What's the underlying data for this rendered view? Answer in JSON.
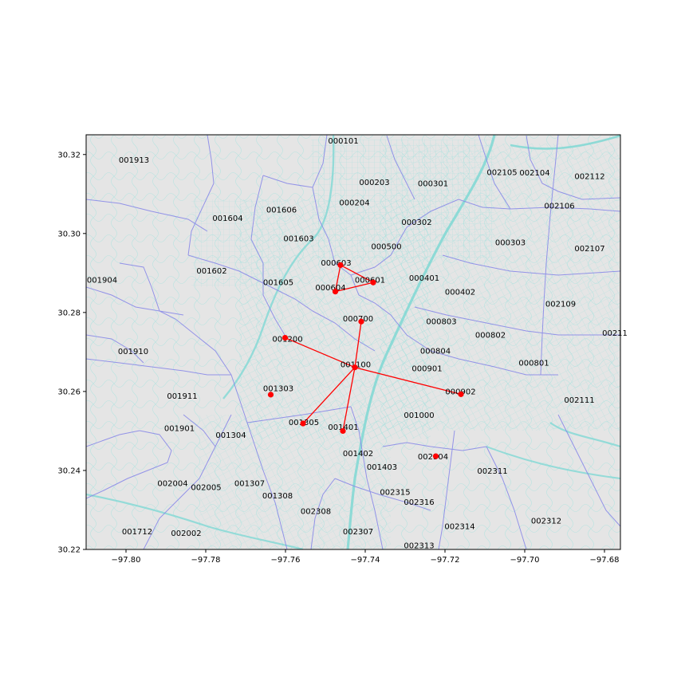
{
  "chart_data": {
    "type": "map",
    "xlim": [
      -97.81,
      -97.676
    ],
    "ylim": [
      30.22,
      30.325
    ],
    "xticks": [
      {
        "value": -97.8,
        "label": "−97.80"
      },
      {
        "value": -97.78,
        "label": "−97.78"
      },
      {
        "value": -97.76,
        "label": "−97.76"
      },
      {
        "value": -97.74,
        "label": "−97.74"
      },
      {
        "value": -97.72,
        "label": "−97.72"
      },
      {
        "value": -97.7,
        "label": "−97.70"
      },
      {
        "value": -97.68,
        "label": "−97.68"
      }
    ],
    "yticks": [
      {
        "value": 30.22,
        "label": "30.22"
      },
      {
        "value": 30.24,
        "label": "30.24"
      },
      {
        "value": 30.26,
        "label": "30.26"
      },
      {
        "value": 30.28,
        "label": "30.28"
      },
      {
        "value": 30.3,
        "label": "30.30"
      },
      {
        "value": 30.32,
        "label": "30.32"
      }
    ],
    "colors": {
      "background": "#e5e5e5",
      "tract_boundary": "#8a8ae8",
      "street": "#8fdcd8",
      "highway": "#6ea8e8",
      "network": "#ff0000"
    },
    "tract_labels": [
      {
        "name": "000101",
        "lon": -97.7455,
        "lat": 30.3235
      },
      {
        "name": "001913",
        "lon": -97.798,
        "lat": 30.3186
      },
      {
        "name": "000203",
        "lon": -97.7377,
        "lat": 30.313
      },
      {
        "name": "000301",
        "lon": -97.723,
        "lat": 30.3127
      },
      {
        "name": "002105",
        "lon": -97.7057,
        "lat": 30.3155
      },
      {
        "name": "002104",
        "lon": -97.6975,
        "lat": 30.3154
      },
      {
        "name": "002112",
        "lon": -97.6837,
        "lat": 30.3145
      },
      {
        "name": "000204",
        "lon": -97.7427,
        "lat": 30.3078
      },
      {
        "name": "001606",
        "lon": -97.761,
        "lat": 30.306
      },
      {
        "name": "002106",
        "lon": -97.6913,
        "lat": 30.307
      },
      {
        "name": "001604",
        "lon": -97.7745,
        "lat": 30.3039
      },
      {
        "name": "000302",
        "lon": -97.7271,
        "lat": 30.3029
      },
      {
        "name": "001603",
        "lon": -97.7567,
        "lat": 30.2988
      },
      {
        "name": "000303",
        "lon": -97.7036,
        "lat": 30.2977
      },
      {
        "name": "000500",
        "lon": -97.7347,
        "lat": 30.2967
      },
      {
        "name": "002107",
        "lon": -97.6837,
        "lat": 30.2962
      },
      {
        "name": "000603",
        "lon": -97.7473,
        "lat": 30.2926
      },
      {
        "name": "001602",
        "lon": -97.7785,
        "lat": 30.2906
      },
      {
        "name": "000601",
        "lon": -97.7388,
        "lat": 30.2883
      },
      {
        "name": "001904",
        "lon": -97.806,
        "lat": 30.2883
      },
      {
        "name": "000401",
        "lon": -97.7252,
        "lat": 30.2888
      },
      {
        "name": "001605",
        "lon": -97.7618,
        "lat": 30.2876
      },
      {
        "name": "000604",
        "lon": -97.7487,
        "lat": 30.2863
      },
      {
        "name": "000402",
        "lon": -97.7162,
        "lat": 30.2852
      },
      {
        "name": "002109",
        "lon": -97.691,
        "lat": 30.2822
      },
      {
        "name": "000700",
        "lon": -97.7418,
        "lat": 30.2785
      },
      {
        "name": "000803",
        "lon": -97.7209,
        "lat": 30.2777
      },
      {
        "name": "000802",
        "lon": -97.7086,
        "lat": 30.2743
      },
      {
        "name": "00211",
        "lon": -97.6774,
        "lat": 30.2748
      },
      {
        "name": "001200",
        "lon": -97.7595,
        "lat": 30.2733
      },
      {
        "name": "001910",
        "lon": -97.7982,
        "lat": 30.2702
      },
      {
        "name": "000804",
        "lon": -97.7224,
        "lat": 30.2703
      },
      {
        "name": "000801",
        "lon": -97.6977,
        "lat": 30.2673
      },
      {
        "name": "001100",
        "lon": -97.7424,
        "lat": 30.2668
      },
      {
        "name": "000901",
        "lon": -97.7245,
        "lat": 30.2658
      },
      {
        "name": "001303",
        "lon": -97.7618,
        "lat": 30.2608
      },
      {
        "name": "000902",
        "lon": -97.7161,
        "lat": 30.26
      },
      {
        "name": "001911",
        "lon": -97.7859,
        "lat": 30.2589
      },
      {
        "name": "002111",
        "lon": -97.6863,
        "lat": 30.2579
      },
      {
        "name": "001000",
        "lon": -97.7265,
        "lat": 30.254
      },
      {
        "name": "001305",
        "lon": -97.7554,
        "lat": 30.2522
      },
      {
        "name": "001401",
        "lon": -97.7455,
        "lat": 30.251
      },
      {
        "name": "001901",
        "lon": -97.7866,
        "lat": 30.2507
      },
      {
        "name": "001304",
        "lon": -97.7737,
        "lat": 30.249
      },
      {
        "name": "001402",
        "lon": -97.7418,
        "lat": 30.2443
      },
      {
        "name": "002304",
        "lon": -97.723,
        "lat": 30.2435
      },
      {
        "name": "001403",
        "lon": -97.7358,
        "lat": 30.2409
      },
      {
        "name": "002311",
        "lon": -97.7081,
        "lat": 30.2399
      },
      {
        "name": "002004",
        "lon": -97.7883,
        "lat": 30.2368
      },
      {
        "name": "001307",
        "lon": -97.769,
        "lat": 30.2368
      },
      {
        "name": "002005",
        "lon": -97.7799,
        "lat": 30.2357
      },
      {
        "name": "002315",
        "lon": -97.7325,
        "lat": 30.2345
      },
      {
        "name": "001308",
        "lon": -97.762,
        "lat": 30.2336
      },
      {
        "name": "002316",
        "lon": -97.7265,
        "lat": 30.232
      },
      {
        "name": "002308",
        "lon": -97.7524,
        "lat": 30.2297
      },
      {
        "name": "002312",
        "lon": -97.6946,
        "lat": 30.2273
      },
      {
        "name": "002314",
        "lon": -97.7163,
        "lat": 30.2259
      },
      {
        "name": "001712",
        "lon": -97.7972,
        "lat": 30.2245
      },
      {
        "name": "002002",
        "lon": -97.7849,
        "lat": 30.2241
      },
      {
        "name": "002307",
        "lon": -97.7418,
        "lat": 30.2245
      },
      {
        "name": "002313",
        "lon": -97.7265,
        "lat": 30.221
      }
    ],
    "nodes": [
      {
        "id": "000603",
        "lon": -97.7462,
        "lat": 30.292
      },
      {
        "id": "000601",
        "lon": -97.738,
        "lat": 30.2876
      },
      {
        "id": "000604",
        "lon": -97.7475,
        "lat": 30.2853
      },
      {
        "id": "000700",
        "lon": -97.741,
        "lat": 30.2777
      },
      {
        "id": "001200",
        "lon": -97.7601,
        "lat": 30.2736
      },
      {
        "id": "001100",
        "lon": -97.7426,
        "lat": 30.2661
      },
      {
        "id": "001303",
        "lon": -97.7637,
        "lat": 30.2592
      },
      {
        "id": "000902",
        "lon": -97.716,
        "lat": 30.2593
      },
      {
        "id": "001305",
        "lon": -97.7556,
        "lat": 30.2519
      },
      {
        "id": "001401",
        "lon": -97.7456,
        "lat": 30.25
      },
      {
        "id": "002304",
        "lon": -97.7223,
        "lat": 30.2436
      }
    ],
    "edges": [
      [
        "000603",
        "000601"
      ],
      [
        "000603",
        "000604"
      ],
      [
        "000604",
        "000601"
      ],
      [
        "000700",
        "001100"
      ],
      [
        "001200",
        "001100"
      ],
      [
        "001100",
        "000902"
      ],
      [
        "001100",
        "001305"
      ],
      [
        "001100",
        "001401"
      ]
    ]
  }
}
